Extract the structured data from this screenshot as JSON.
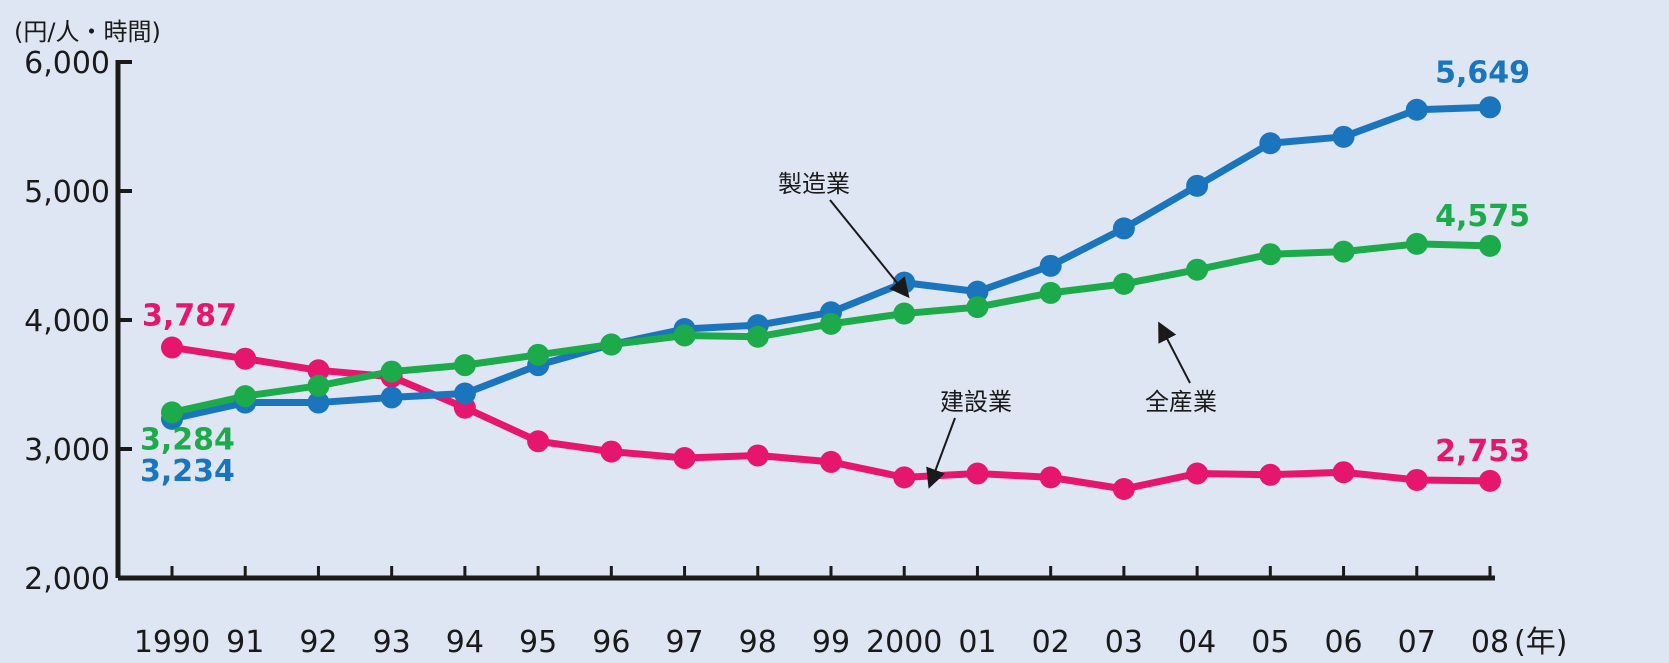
{
  "chart_data": {
    "type": "line",
    "ylabel": "(円/人・時間)",
    "xlabel": "(年)",
    "ylim": [
      2000,
      6000
    ],
    "y_ticks": [
      {
        "value": 2000,
        "label": "2,000"
      },
      {
        "value": 3000,
        "label": "3,000"
      },
      {
        "value": 4000,
        "label": "4,000"
      },
      {
        "value": 5000,
        "label": "5,000"
      },
      {
        "value": 6000,
        "label": "6,000"
      }
    ],
    "categories": [
      "1990",
      "91",
      "92",
      "93",
      "94",
      "95",
      "96",
      "97",
      "98",
      "99",
      "2000",
      "01",
      "02",
      "03",
      "04",
      "05",
      "06",
      "07",
      "08"
    ],
    "grid": false,
    "series": [
      {
        "name": "建設業",
        "color": "#e6166f",
        "values": [
          3787,
          3700,
          3610,
          3560,
          3320,
          3060,
          2980,
          2930,
          2950,
          2900,
          2780,
          2810,
          2780,
          2690,
          2810,
          2800,
          2820,
          2760,
          2753
        ],
        "start_label": "3,787",
        "end_label": "2,753"
      },
      {
        "name": "製造業",
        "color": "#1a75bc",
        "values": [
          3234,
          3360,
          3360,
          3400,
          3430,
          3650,
          3810,
          3930,
          3960,
          4060,
          4290,
          4220,
          4420,
          4710,
          5040,
          5370,
          5420,
          5630,
          5649
        ],
        "start_label": "3,234",
        "end_label": "5,649"
      },
      {
        "name": "全産業",
        "color": "#1daa4b",
        "values": [
          3284,
          3410,
          3490,
          3600,
          3650,
          3730,
          3810,
          3880,
          3870,
          3970,
          4050,
          4100,
          4210,
          4280,
          4390,
          4510,
          4530,
          4590,
          4575
        ],
        "start_label": "3,284",
        "end_label": "4,575"
      }
    ]
  }
}
